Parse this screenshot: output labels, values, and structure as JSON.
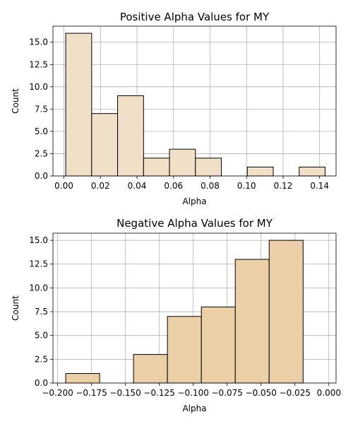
{
  "chart_data": [
    {
      "type": "bar",
      "title": "Positive Alpha Values for MY",
      "xlabel": "Alpha",
      "ylabel": "Count",
      "color": "#f0e0c8",
      "grid": true,
      "xlim": [
        -0.006,
        0.149
      ],
      "ylim": [
        0,
        16.8
      ],
      "xticks": [
        0.0,
        0.02,
        0.04,
        0.06,
        0.08,
        0.1,
        0.12,
        0.14
      ],
      "xtick_labels": [
        "0.00",
        "0.02",
        "0.04",
        "0.06",
        "0.08",
        "0.10",
        "0.12",
        "0.14"
      ],
      "yticks": [
        0.0,
        2.5,
        5.0,
        7.5,
        10.0,
        12.5,
        15.0
      ],
      "ytick_labels": [
        "0.0",
        "2.5",
        "5.0",
        "7.5",
        "10.0",
        "12.5",
        "15.0"
      ],
      "bins": [
        {
          "x0": 0.001,
          "x1": 0.0152,
          "count": 16
        },
        {
          "x0": 0.0152,
          "x1": 0.0294,
          "count": 7
        },
        {
          "x0": 0.0294,
          "x1": 0.0436,
          "count": 9
        },
        {
          "x0": 0.0436,
          "x1": 0.0578,
          "count": 2
        },
        {
          "x0": 0.0578,
          "x1": 0.072,
          "count": 3
        },
        {
          "x0": 0.072,
          "x1": 0.0862,
          "count": 2
        },
        {
          "x0": 0.1004,
          "x1": 0.1146,
          "count": 1
        },
        {
          "x0": 0.1288,
          "x1": 0.143,
          "count": 1
        }
      ]
    },
    {
      "type": "bar",
      "title": "Negative Alpha Values for MY",
      "xlabel": "Alpha",
      "ylabel": "Count",
      "color": "#ebcfa7",
      "grid": true,
      "xlim": [
        -0.2034,
        0.0053
      ],
      "ylim": [
        0,
        15.75
      ],
      "xticks": [
        -0.2,
        -0.175,
        -0.15,
        -0.125,
        -0.1,
        -0.075,
        -0.05,
        -0.025,
        0.0
      ],
      "xtick_labels": [
        "−0.200",
        "−0.175",
        "−0.150",
        "−0.125",
        "−0.100",
        "−0.075",
        "−0.050",
        "−0.025",
        "0.000"
      ],
      "yticks": [
        0.0,
        2.5,
        5.0,
        7.5,
        10.0,
        12.5,
        15.0
      ],
      "ytick_labels": [
        "0.0",
        "2.5",
        "5.0",
        "7.5",
        "10.0",
        "12.5",
        "15.0"
      ],
      "bins": [
        {
          "x0": -0.194,
          "x1": -0.169,
          "count": 1
        },
        {
          "x0": -0.144,
          "x1": -0.119,
          "count": 3
        },
        {
          "x0": -0.119,
          "x1": -0.094,
          "count": 7
        },
        {
          "x0": -0.094,
          "x1": -0.069,
          "count": 8
        },
        {
          "x0": -0.069,
          "x1": -0.044,
          "count": 13
        },
        {
          "x0": -0.044,
          "x1": -0.019,
          "count": 15
        }
      ]
    }
  ]
}
